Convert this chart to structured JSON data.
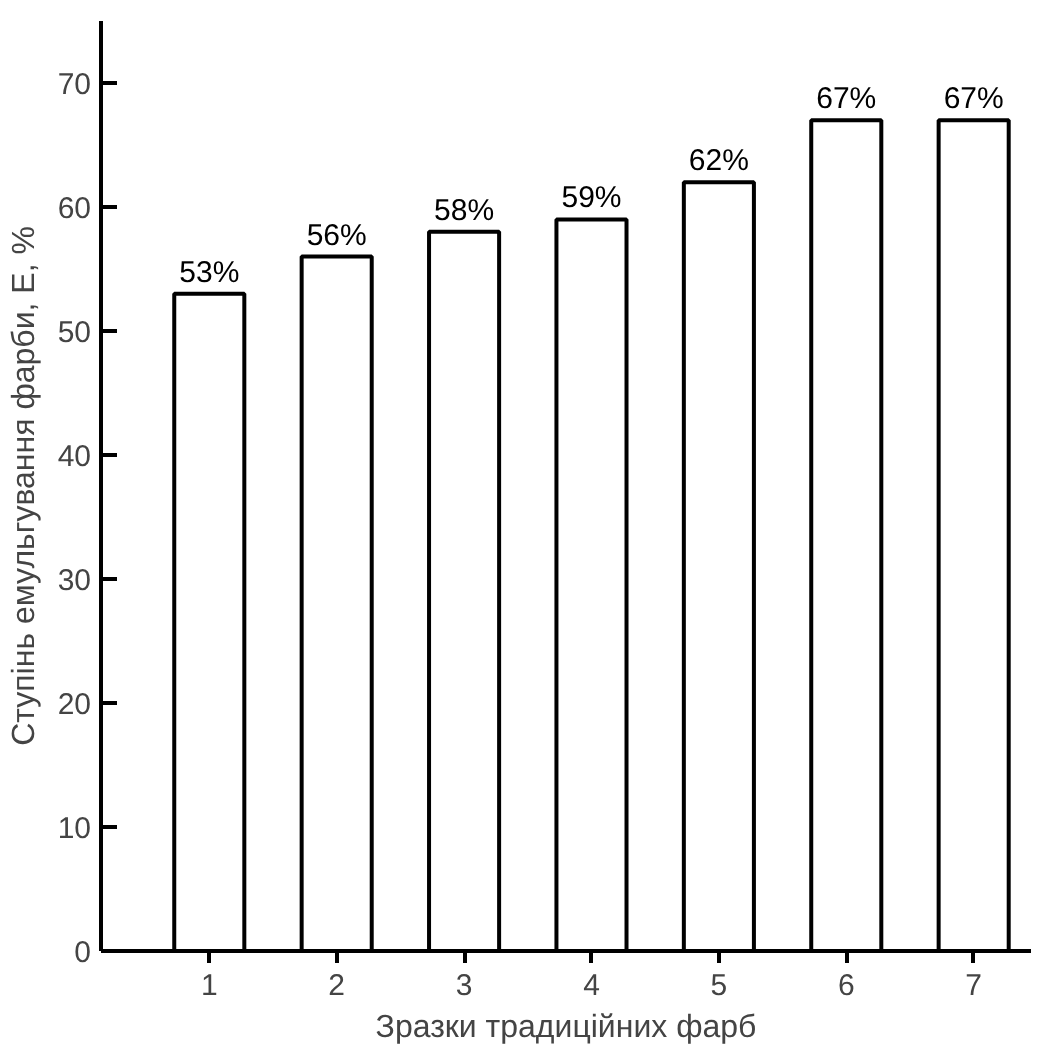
{
  "chart_data": {
    "type": "bar",
    "xlabel": "Зразки традиційних фарб",
    "ylabel": "Ступінь емульгування фарби, Е, %",
    "categories": [
      "1",
      "2",
      "3",
      "4",
      "5",
      "6",
      "7"
    ],
    "values": [
      53,
      56,
      58,
      59,
      62,
      67,
      67
    ],
    "value_labels": [
      "53%",
      "56%",
      "58%",
      "59%",
      "62%",
      "67%",
      "67%"
    ],
    "color": "#ffffff",
    "ylim": [
      0,
      75
    ],
    "yticks": [
      0,
      10,
      20,
      30,
      40,
      50,
      60,
      70
    ],
    "grid": false
  }
}
